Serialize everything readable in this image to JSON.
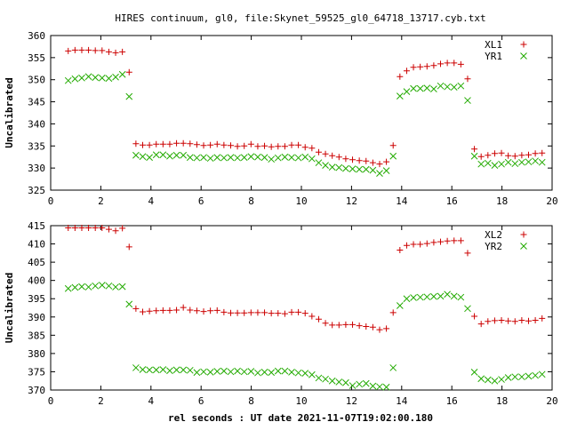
{
  "figure": {
    "title": "HIRES continuum, gl0, file:Skynet_59525_gl0_64718_13717.cyb.txt",
    "xlabel": "rel seconds : UT date 2021-11-07T19:02:00.180"
  },
  "chart_data": [
    {
      "type": "scatter",
      "title": "HIRES continuum, gl0, file:Skynet_59525_gl0_64718_13717.cyb.txt",
      "ylabel": "Uncalibrated",
      "xlim": [
        0,
        20
      ],
      "ylim": [
        325,
        360
      ],
      "xticks": [
        0,
        2,
        4,
        6,
        8,
        10,
        12,
        14,
        16,
        18,
        20
      ],
      "yticks": [
        325,
        330,
        335,
        340,
        345,
        350,
        355,
        360
      ],
      "legend": "top-right",
      "grid": false,
      "series": [
        {
          "name": "XL1",
          "marker": "plus",
          "color": "#cc0000",
          "x": [
            0.7,
            0.97,
            1.24,
            1.51,
            1.78,
            2.05,
            2.32,
            2.59,
            2.86,
            3.13,
            3.4,
            3.67,
            3.94,
            4.21,
            4.48,
            4.75,
            5.02,
            5.29,
            5.56,
            5.83,
            6.1,
            6.37,
            6.64,
            6.91,
            7.18,
            7.45,
            7.72,
            7.99,
            8.26,
            8.53,
            8.8,
            9.07,
            9.34,
            9.61,
            9.88,
            10.15,
            10.42,
            10.69,
            10.96,
            11.23,
            11.5,
            11.77,
            12.04,
            12.31,
            12.58,
            12.85,
            13.12,
            13.39,
            13.66,
            13.93,
            14.2,
            14.47,
            14.74,
            15.01,
            15.28,
            15.55,
            15.82,
            16.09,
            16.36,
            16.63,
            16.9,
            17.17,
            17.44,
            17.71,
            17.98,
            18.25,
            18.52,
            18.79,
            19.06,
            19.33,
            19.6
          ],
          "y": [
            356.5,
            356.7,
            356.7,
            356.7,
            356.6,
            356.6,
            356.3,
            356.1,
            356.3,
            351.7,
            335.5,
            335.2,
            335.2,
            335.4,
            335.4,
            335.4,
            335.6,
            335.6,
            335.5,
            335.3,
            335.1,
            335.2,
            335.4,
            335.2,
            335.1,
            334.9,
            335.0,
            335.4,
            334.9,
            335.0,
            334.8,
            334.9,
            334.9,
            335.2,
            335.2,
            334.7,
            334.5,
            333.6,
            333.2,
            332.8,
            332.5,
            332.1,
            331.9,
            331.7,
            331.6,
            331.2,
            330.9,
            331.4,
            335.1,
            350.7,
            352.0,
            352.8,
            352.9,
            353.0,
            353.2,
            353.6,
            353.8,
            353.8,
            353.5,
            350.2,
            334.3,
            332.6,
            332.9,
            333.3,
            333.4,
            332.8,
            332.7,
            332.9,
            333.0,
            333.3,
            333.4
          ]
        },
        {
          "name": "YR1",
          "marker": "cross",
          "color": "#22aa00",
          "x": [
            0.7,
            0.97,
            1.24,
            1.51,
            1.78,
            2.05,
            2.32,
            2.59,
            2.86,
            3.13,
            3.4,
            3.67,
            3.94,
            4.21,
            4.48,
            4.75,
            5.02,
            5.29,
            5.56,
            5.83,
            6.1,
            6.37,
            6.64,
            6.91,
            7.18,
            7.45,
            7.72,
            7.99,
            8.26,
            8.53,
            8.8,
            9.07,
            9.34,
            9.61,
            9.88,
            10.15,
            10.42,
            10.69,
            10.96,
            11.23,
            11.5,
            11.77,
            12.04,
            12.31,
            12.58,
            12.85,
            13.12,
            13.39,
            13.66,
            13.93,
            14.2,
            14.47,
            14.74,
            15.01,
            15.28,
            15.55,
            15.82,
            16.09,
            16.36,
            16.63,
            16.9,
            17.17,
            17.44,
            17.71,
            17.98,
            18.25,
            18.52,
            18.79,
            19.06,
            19.33,
            19.6
          ],
          "y": [
            349.8,
            350.2,
            350.4,
            350.7,
            350.5,
            350.4,
            350.3,
            350.6,
            351.2,
            346.2,
            332.9,
            332.6,
            332.4,
            333.0,
            333.0,
            332.7,
            332.9,
            332.9,
            332.4,
            332.3,
            332.4,
            332.2,
            332.4,
            332.3,
            332.4,
            332.3,
            332.4,
            332.6,
            332.5,
            332.4,
            332.0,
            332.3,
            332.5,
            332.4,
            332.3,
            332.5,
            332.1,
            331.2,
            330.6,
            330.2,
            330.1,
            329.9,
            329.8,
            329.7,
            329.7,
            329.5,
            328.8,
            329.4,
            332.7,
            346.3,
            347.3,
            348.0,
            348.0,
            348.1,
            347.9,
            348.6,
            348.4,
            348.3,
            348.6,
            345.3,
            332.7,
            330.9,
            331.1,
            330.6,
            330.9,
            331.3,
            331.0,
            331.3,
            331.4,
            331.6,
            331.3
          ]
        }
      ]
    },
    {
      "type": "scatter",
      "ylabel": "Uncalibrated",
      "xlim": [
        0,
        20
      ],
      "ylim": [
        370,
        415
      ],
      "xticks": [
        0,
        2,
        4,
        6,
        8,
        10,
        12,
        14,
        16,
        18,
        20
      ],
      "yticks": [
        370,
        375,
        380,
        385,
        390,
        395,
        400,
        405,
        410,
        415
      ],
      "legend": "top-right",
      "grid": false,
      "series": [
        {
          "name": "XL2",
          "marker": "plus",
          "color": "#cc0000",
          "x": [
            0.7,
            0.97,
            1.24,
            1.51,
            1.78,
            2.05,
            2.32,
            2.59,
            2.86,
            3.13,
            3.4,
            3.67,
            3.94,
            4.21,
            4.48,
            4.75,
            5.02,
            5.29,
            5.56,
            5.83,
            6.1,
            6.37,
            6.64,
            6.91,
            7.18,
            7.45,
            7.72,
            7.99,
            8.26,
            8.53,
            8.8,
            9.07,
            9.34,
            9.61,
            9.88,
            10.15,
            10.42,
            10.69,
            10.96,
            11.23,
            11.5,
            11.77,
            12.04,
            12.31,
            12.58,
            12.85,
            13.12,
            13.39,
            13.66,
            13.93,
            14.2,
            14.47,
            14.74,
            15.01,
            15.28,
            15.55,
            15.82,
            16.09,
            16.36,
            16.63,
            16.9,
            17.17,
            17.44,
            17.71,
            17.98,
            18.25,
            18.52,
            18.79,
            19.06,
            19.33,
            19.6
          ],
          "y": [
            414.4,
            414.4,
            414.4,
            414.4,
            414.4,
            414.4,
            414.0,
            413.6,
            414.3,
            409.2,
            392.3,
            391.4,
            391.6,
            391.7,
            391.8,
            391.8,
            391.9,
            392.6,
            391.9,
            391.7,
            391.5,
            391.7,
            391.8,
            391.3,
            391.1,
            391.1,
            391.1,
            391.2,
            391.2,
            391.2,
            391.0,
            391.0,
            390.9,
            391.3,
            391.3,
            391.0,
            390.2,
            389.4,
            388.3,
            387.8,
            387.8,
            387.9,
            387.9,
            387.6,
            387.4,
            387.2,
            386.5,
            386.8,
            391.2,
            408.3,
            409.6,
            409.9,
            409.9,
            410.1,
            410.4,
            410.6,
            410.8,
            410.9,
            410.9,
            407.5,
            390.2,
            388.1,
            388.8,
            389.0,
            389.1,
            388.9,
            388.8,
            389.1,
            388.9,
            389.1,
            389.6
          ]
        },
        {
          "name": "YR2",
          "marker": "cross",
          "color": "#22aa00",
          "x": [
            0.7,
            0.97,
            1.24,
            1.51,
            1.78,
            2.05,
            2.32,
            2.59,
            2.86,
            3.13,
            3.4,
            3.67,
            3.94,
            4.21,
            4.48,
            4.75,
            5.02,
            5.29,
            5.56,
            5.83,
            6.1,
            6.37,
            6.64,
            6.91,
            7.18,
            7.45,
            7.72,
            7.99,
            8.26,
            8.53,
            8.8,
            9.07,
            9.34,
            9.61,
            9.88,
            10.15,
            10.42,
            10.69,
            10.96,
            11.23,
            11.5,
            11.77,
            12.04,
            12.31,
            12.58,
            12.85,
            13.12,
            13.39,
            13.66,
            13.93,
            14.2,
            14.47,
            14.74,
            15.01,
            15.28,
            15.55,
            15.82,
            16.09,
            16.36,
            16.63,
            16.9,
            17.17,
            17.44,
            17.71,
            17.98,
            18.25,
            18.52,
            18.79,
            19.06,
            19.33,
            19.6
          ],
          "y": [
            397.8,
            398.1,
            398.3,
            398.2,
            398.5,
            398.7,
            398.5,
            398.2,
            398.3,
            393.5,
            376.1,
            375.6,
            375.5,
            375.5,
            375.6,
            375.3,
            375.5,
            375.5,
            375.4,
            374.8,
            375.0,
            374.9,
            375.1,
            375.2,
            375.0,
            375.2,
            375.0,
            375.1,
            374.7,
            374.9,
            374.8,
            375.2,
            375.2,
            374.9,
            374.7,
            374.6,
            374.2,
            373.3,
            373.0,
            372.5,
            372.2,
            372.0,
            371.2,
            371.6,
            371.8,
            371.1,
            370.9,
            370.8,
            376.1,
            393.1,
            395.0,
            395.3,
            395.4,
            395.5,
            395.6,
            395.7,
            396.2,
            395.7,
            395.4,
            392.3,
            374.9,
            373.1,
            372.8,
            372.5,
            372.9,
            373.4,
            373.6,
            373.6,
            373.8,
            374.0,
            374.3
          ]
        }
      ]
    }
  ]
}
